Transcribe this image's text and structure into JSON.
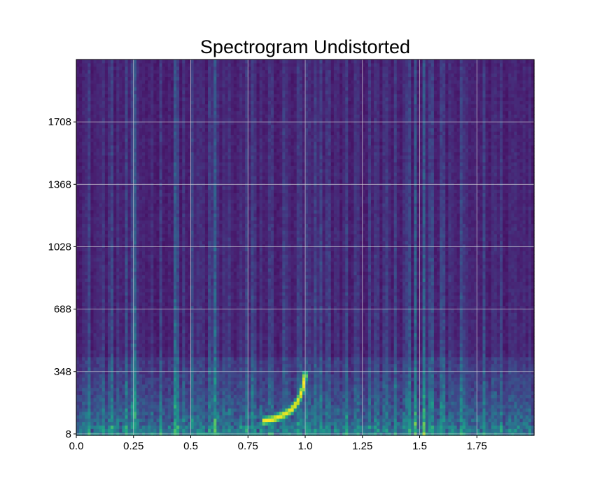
{
  "chart_data": {
    "type": "heatmap",
    "title": "Spectrogram Undistorted",
    "xlabel": "",
    "ylabel": "",
    "colormap": "viridis",
    "grid": true,
    "grid_color": "#dcdcdc",
    "xlim": [
      0,
      2.0
    ],
    "ylim": [
      0,
      2048
    ],
    "x_ticks": [
      0.0,
      0.25,
      0.5,
      0.75,
      1.0,
      1.25,
      1.5,
      1.75
    ],
    "x_tick_labels": [
      "0.0",
      "0.25",
      "0.5",
      "0.75",
      "1.0",
      "1.25",
      "1.5",
      "1.75"
    ],
    "y_ticks": [
      8,
      348,
      688,
      1028,
      1368,
      1708
    ],
    "y_tick_labels": [
      "8",
      "348",
      "688",
      "1028",
      "1368",
      "1708"
    ],
    "features": [
      {
        "description": "chirp",
        "t": [
          0.82,
          0.86,
          0.9,
          0.94,
          0.97,
          0.99,
          1.0
        ],
        "f": [
          80,
          90,
          110,
          140,
          190,
          260,
          330
        ],
        "intensity": 1.0
      },
      {
        "description": "low-frequency energy band",
        "f_range": [
          8,
          300
        ],
        "intensity": 0.35
      },
      {
        "description": "vertical broadband streaks",
        "t": [
          0.25,
          0.43,
          0.6,
          1.48,
          1.51
        ],
        "intensity": 0.45
      }
    ]
  }
}
